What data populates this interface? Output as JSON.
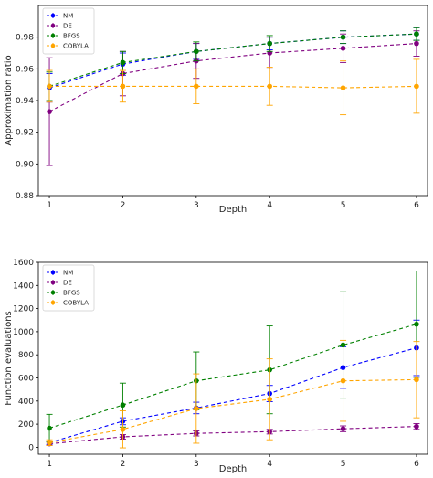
{
  "chart_data": [
    {
      "type": "line",
      "xlabel": "Depth",
      "ylabel": "Approximation ratio",
      "x": [
        1,
        2,
        3,
        4,
        5,
        6
      ],
      "xlim": [
        0.85,
        6.15
      ],
      "ylim": [
        0.88,
        1.0
      ],
      "xticks": [
        "1",
        "2",
        "3",
        "4",
        "5",
        "6"
      ],
      "yticks": [
        "0.88",
        "0.90",
        "0.92",
        "0.94",
        "0.96",
        "0.98"
      ],
      "ytick_values": [
        0.88,
        0.9,
        0.92,
        0.94,
        0.96,
        0.98
      ],
      "legend_position": "top-left",
      "grid": false,
      "series": [
        {
          "name": "NM",
          "color": "#0000ff",
          "values": [
            0.948,
            0.963,
            0.971,
            0.976,
            0.98,
            0.982
          ],
          "err": [
            0.009,
            0.007,
            0.005,
            0.004,
            0.004,
            0.004
          ]
        },
        {
          "name": "DE",
          "color": "#800080",
          "values": [
            0.933,
            0.957,
            0.965,
            0.97,
            0.973,
            0.976
          ],
          "err": [
            0.034,
            0.014,
            0.011,
            0.01,
            0.009,
            0.008
          ]
        },
        {
          "name": "BFGS",
          "color": "#008000",
          "values": [
            0.949,
            0.964,
            0.971,
            0.976,
            0.98,
            0.982
          ],
          "err": [
            0.009,
            0.007,
            0.006,
            0.005,
            0.004,
            0.004
          ]
        },
        {
          "name": "COBYLA",
          "color": "#ffa500",
          "values": [
            0.949,
            0.949,
            0.949,
            0.949,
            0.948,
            0.949
          ],
          "err": [
            0.01,
            0.01,
            0.011,
            0.012,
            0.017,
            0.017
          ]
        }
      ]
    },
    {
      "type": "line",
      "xlabel": "Depth",
      "ylabel": "Function evaluations",
      "x": [
        1,
        2,
        3,
        4,
        5,
        6
      ],
      "xlim": [
        0.85,
        6.15
      ],
      "ylim": [
        -60,
        1600
      ],
      "xticks": [
        "1",
        "2",
        "3",
        "4",
        "5",
        "6"
      ],
      "yticks": [
        "0",
        "200",
        "400",
        "600",
        "800",
        "1000",
        "1200",
        "1400",
        "1600"
      ],
      "ytick_values": [
        0,
        200,
        400,
        600,
        800,
        1000,
        1200,
        1400,
        1600
      ],
      "legend_position": "top-left",
      "grid": false,
      "series": [
        {
          "name": "NM",
          "color": "#0000ff",
          "values": [
            40,
            225,
            340,
            465,
            690,
            860
          ],
          "err": [
            15,
            30,
            50,
            70,
            180,
            240
          ]
        },
        {
          "name": "DE",
          "color": "#800080",
          "values": [
            30,
            90,
            120,
            135,
            160,
            180
          ],
          "err": [
            15,
            20,
            22,
            20,
            25,
            25
          ]
        },
        {
          "name": "BFGS",
          "color": "#008000",
          "values": [
            165,
            365,
            575,
            670,
            885,
            1065
          ],
          "err": [
            120,
            190,
            250,
            380,
            460,
            460
          ]
        },
        {
          "name": "COBYLA",
          "color": "#ffa500",
          "values": [
            40,
            155,
            335,
            415,
            575,
            585
          ],
          "err": [
            25,
            160,
            300,
            350,
            350,
            330
          ]
        }
      ]
    }
  ]
}
